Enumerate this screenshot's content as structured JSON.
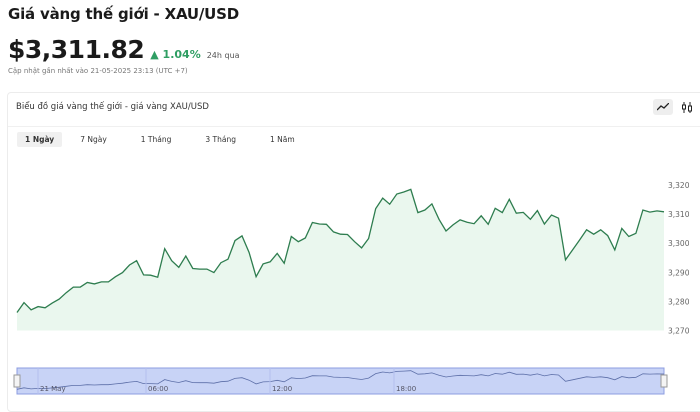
{
  "header": {
    "title": "Giá vàng thế giới - XAU/USD",
    "price": "$3,311.82",
    "change": "▲ 1.04%",
    "change_period": "24h qua",
    "updated": "Cập nhật gần nhất vào 21-05-2025 23:13 (UTC +7)",
    "change_color": "#2f9e63"
  },
  "card": {
    "title": "Biểu đồ giá vàng thế giới - giá vàng XAU/USD",
    "icons": [
      "line-chart-icon",
      "candlestick-icon"
    ],
    "tabs": [
      {
        "label": "1 Ngày",
        "active": true
      },
      {
        "label": "7 Ngày"
      },
      {
        "label": "1 Tháng"
      },
      {
        "label": "3 Tháng"
      },
      {
        "label": "1 Năm"
      }
    ]
  },
  "chart_data": {
    "type": "area",
    "line_color": "#2e7d4f",
    "fill_color": "#eaf7ee",
    "navigator_color": "#c8d3f6",
    "ylim": [
      3270,
      3320
    ],
    "y_ticks": [
      "3,320",
      "3,310",
      "3,300",
      "3,290",
      "3,280",
      "3,270"
    ],
    "y_tick_values": [
      3320,
      3310,
      3300,
      3290,
      3280,
      3270
    ],
    "navigator_labels": [
      "21 May",
      "06:00",
      "12:00",
      "18:00"
    ],
    "values": [
      3276.2,
      3279.6,
      3277.1,
      3278.2,
      3277.8,
      3279.4,
      3280.8,
      3283.0,
      3284.9,
      3284.9,
      3286.5,
      3286.0,
      3286.7,
      3286.7,
      3288.5,
      3289.9,
      3292.5,
      3294.0,
      3289.1,
      3289.0,
      3288.3,
      3298.1,
      3294.0,
      3291.7,
      3295.6,
      3291.3,
      3291.1,
      3291.1,
      3289.9,
      3293.3,
      3294.5,
      3300.9,
      3302.5,
      3296.8,
      3288.5,
      3292.9,
      3293.6,
      3296.5,
      3293.1,
      3302.3,
      3300.5,
      3301.8,
      3307.1,
      3306.6,
      3306.5,
      3303.9,
      3303.1,
      3303.0,
      3300.5,
      3298.4,
      3301.6,
      3311.9,
      3315.5,
      3313.4,
      3316.9,
      3317.6,
      3318.5,
      3310.5,
      3311.4,
      3313.5,
      3308.2,
      3304.2,
      3306.3,
      3308.0,
      3307.2,
      3306.7,
      3309.4,
      3306.5,
      3312.0,
      3310.5,
      3315.1,
      3310.3,
      3310.6,
      3308.2,
      3311.2,
      3306.6,
      3309.7,
      3308.6,
      3294.3,
      3297.7,
      3301.1,
      3304.6,
      3303.1,
      3304.6,
      3302.6,
      3297.7,
      3305.1,
      3302.3,
      3303.4,
      3311.4,
      3310.7,
      3311.1,
      3310.8
    ]
  }
}
